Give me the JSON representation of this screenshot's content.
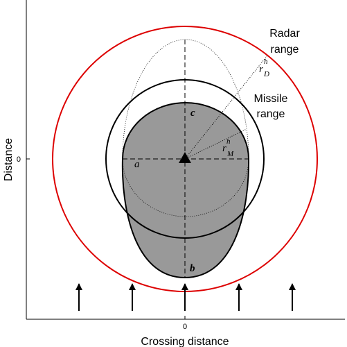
{
  "axes": {
    "x_label": "Crossing distance",
    "y_label": "Distance",
    "x_tick": "0",
    "y_tick": "0"
  },
  "labels": {
    "radar_range": [
      "Radar",
      "range"
    ],
    "missile_range": [
      "Missile",
      "range"
    ],
    "a": "a",
    "b": "b",
    "c": "c",
    "r_radar": {
      "symbol": "r",
      "sup": "h",
      "sub": "D"
    },
    "r_missile": {
      "symbol": "r",
      "sup": "h",
      "sub": "M"
    }
  }
}
